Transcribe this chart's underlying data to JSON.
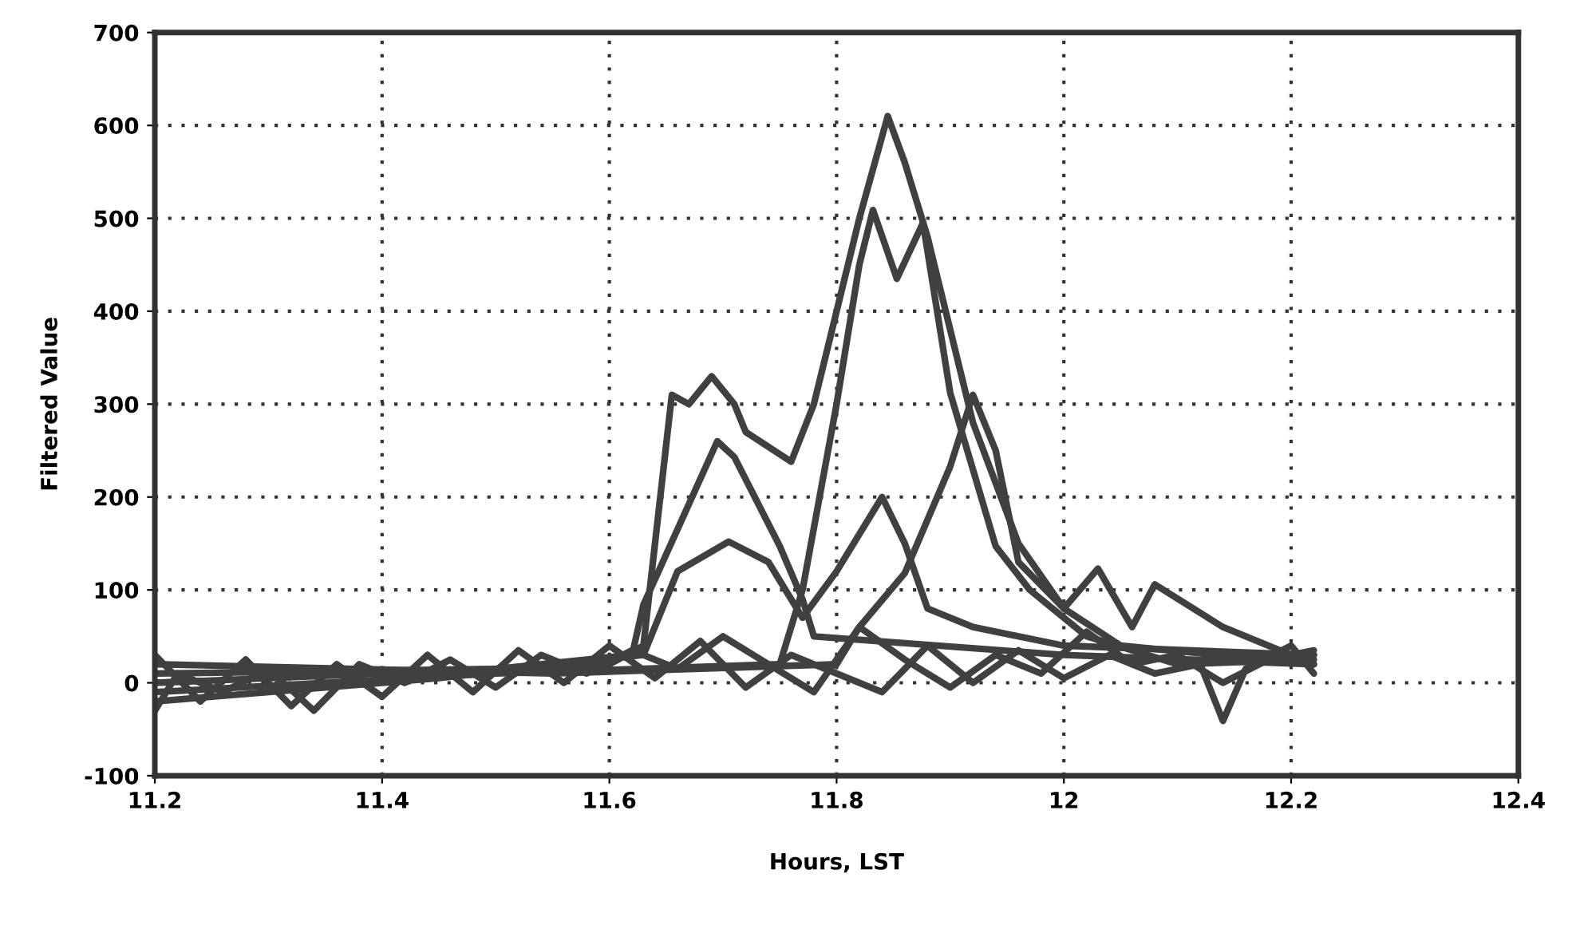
{
  "chart_data": {
    "type": "line",
    "xlabel": "Hours, LST",
    "ylabel": "Filtered Value",
    "xlim": [
      11.2,
      12.4
    ],
    "ylim": [
      -100,
      700
    ],
    "xticks": [
      11.2,
      11.4,
      11.6,
      11.8,
      12,
      12.2,
      12.4
    ],
    "yticks": [
      -100,
      0,
      100,
      200,
      300,
      400,
      500,
      600,
      700
    ],
    "grid": true,
    "legend": false,
    "marker": "none",
    "line_style": "solid",
    "series": [
      {
        "color": "#404040",
        "x": [
          11.2,
          11.4,
          11.6,
          11.63,
          11.655,
          11.67,
          11.69,
          11.71,
          11.72,
          11.745,
          11.76,
          11.78,
          11.8,
          11.82,
          11.845,
          11.86,
          11.88,
          11.9,
          11.92,
          11.96,
          12.0,
          12.05,
          12.22
        ],
        "values": [
          0,
          10,
          20,
          40,
          310,
          300,
          330,
          300,
          270,
          250,
          238,
          300,
          400,
          500,
          610,
          560,
          480,
          380,
          280,
          150,
          80,
          40,
          20
        ]
      },
      {
        "color": "#404040",
        "x": [
          11.2,
          11.5,
          11.75,
          11.77,
          11.8,
          11.82,
          11.832,
          11.853,
          11.876,
          11.9,
          11.94,
          11.97,
          12.02,
          12.1,
          12.22
        ],
        "values": [
          -10,
          10,
          20,
          100,
          300,
          450,
          509,
          435,
          495,
          312,
          147,
          100,
          50,
          20,
          25
        ]
      },
      {
        "color": "#404040",
        "x": [
          11.2,
          11.5,
          11.62,
          11.63,
          11.695,
          11.71,
          11.75,
          11.77,
          11.78,
          12.0,
          12.22
        ],
        "values": [
          10,
          15,
          30,
          84,
          260,
          243,
          147,
          90,
          50,
          30,
          20
        ]
      },
      {
        "color": "#404040",
        "x": [
          11.2,
          11.45,
          11.63,
          11.66,
          11.705,
          11.74,
          11.77,
          11.8,
          11.84,
          11.86,
          11.88,
          11.92,
          12.0,
          12.22
        ],
        "values": [
          -20,
          5,
          30,
          120,
          152,
          130,
          70,
          120,
          200,
          150,
          80,
          60,
          40,
          30
        ]
      },
      {
        "color": "#404040",
        "x": [
          11.2,
          11.55,
          11.8,
          11.82,
          11.86,
          11.9,
          11.92,
          11.94,
          11.96,
          12.0,
          12.03,
          12.06,
          12.08,
          12.14,
          12.2,
          12.22
        ],
        "values": [
          20,
          10,
          20,
          60,
          118,
          233,
          310,
          250,
          130,
          80,
          123,
          60,
          106,
          60,
          30,
          35
        ]
      },
      {
        "color": "#404040",
        "x": [
          11.2,
          11.24,
          11.28,
          11.32,
          11.36,
          11.4,
          11.44,
          11.48,
          11.52,
          11.56,
          11.6,
          11.64,
          11.68,
          11.72,
          11.76,
          11.8,
          11.84,
          11.88,
          11.92,
          11.96,
          12.0,
          12.04,
          12.08,
          12.12,
          12.14,
          12.16,
          12.2,
          12.22
        ],
        "values": [
          30,
          -20,
          25,
          -25,
          20,
          -15,
          30,
          -10,
          35,
          0,
          40,
          5,
          45,
          -5,
          30,
          10,
          -10,
          40,
          0,
          35,
          5,
          30,
          10,
          20,
          -41,
          15,
          40,
          10
        ]
      },
      {
        "color": "#404040",
        "x": [
          11.2,
          11.22,
          11.26,
          11.3,
          11.34,
          11.38,
          11.42,
          11.46,
          11.5,
          11.54,
          11.58,
          11.62,
          11.66,
          11.7,
          11.74,
          11.78,
          11.82,
          11.86,
          11.9,
          11.94,
          11.98,
          12.02,
          12.06,
          12.1,
          12.14,
          12.18,
          12.22
        ],
        "values": [
          -30,
          10,
          -10,
          15,
          -30,
          20,
          0,
          25,
          -5,
          30,
          10,
          35,
          15,
          50,
          20,
          -10,
          60,
          25,
          -5,
          30,
          10,
          55,
          20,
          30,
          0,
          25,
          30
        ]
      }
    ]
  }
}
